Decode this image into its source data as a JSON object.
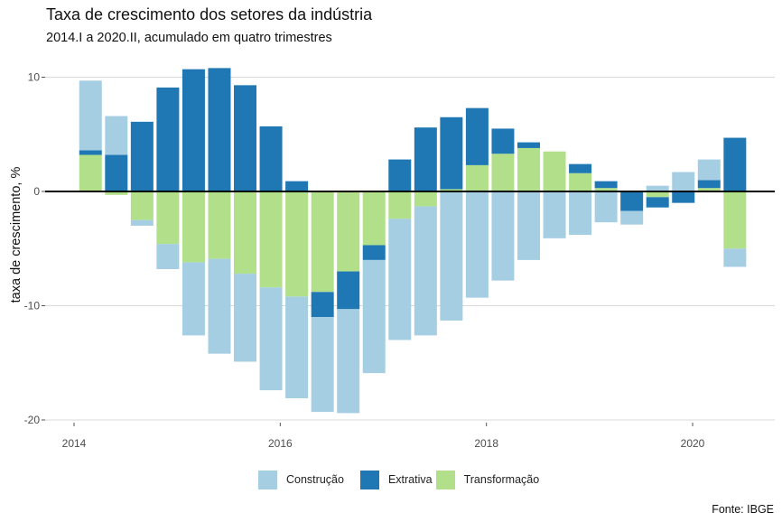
{
  "chart_data": {
    "type": "bar",
    "stacked": true,
    "title": "Taxa de crescimento dos setores da indústria",
    "subtitle": "2014.I a 2020.II, acumulado em quatro trimestres",
    "xlabel": "",
    "ylabel": "taxa de crescimento, %",
    "ylim": [
      -21,
      11
    ],
    "xlim": [
      2013.5,
      2020.87
    ],
    "yticks": [
      10,
      0,
      -10,
      -20
    ],
    "ytick_labels": [
      "10",
      "0",
      "-10",
      "-20"
    ],
    "xticks": [
      2014,
      2016,
      2018,
      2020
    ],
    "xtick_labels": [
      "2014",
      "2016",
      "2018",
      "2020"
    ],
    "grid": "horizontal",
    "legend_position": "bottom",
    "caption": "Fonte: IBGE",
    "categories": [
      "2014.I",
      "2014.II",
      "2014.III",
      "2014.IV",
      "2015.I",
      "2015.II",
      "2015.III",
      "2015.IV",
      "2016.I",
      "2016.II",
      "2016.III",
      "2016.IV",
      "2017.I",
      "2017.II",
      "2017.III",
      "2017.IV",
      "2018.I",
      "2018.II",
      "2018.III",
      "2018.IV",
      "2019.I",
      "2019.II",
      "2019.III",
      "2019.IV",
      "2020.I",
      "2020.II"
    ],
    "x": [
      2014.16,
      2014.41,
      2014.66,
      2014.91,
      2015.16,
      2015.41,
      2015.66,
      2015.91,
      2016.16,
      2016.41,
      2016.66,
      2016.91,
      2017.16,
      2017.41,
      2017.66,
      2017.91,
      2018.16,
      2018.41,
      2018.66,
      2018.91,
      2019.16,
      2019.41,
      2019.66,
      2019.91,
      2020.16,
      2020.41
    ],
    "series": [
      {
        "name": "Transformação",
        "color": "#b2df8a",
        "values": [
          3.2,
          -0.3,
          -2.5,
          -4.6,
          -6.2,
          -5.9,
          -7.2,
          -8.4,
          -9.2,
          -8.8,
          -7.0,
          -4.7,
          -2.4,
          -1.3,
          0.2,
          2.3,
          3.3,
          3.8,
          3.5,
          1.6,
          0.3,
          0.0,
          -0.5,
          0.0,
          0.3,
          -5.0
        ]
      },
      {
        "name": "Extrativa",
        "color": "#1f78b4",
        "values": [
          0.4,
          3.2,
          6.1,
          9.1,
          10.7,
          10.8,
          9.3,
          5.7,
          0.9,
          -2.2,
          -3.3,
          -1.3,
          2.8,
          5.6,
          6.3,
          5.0,
          2.2,
          0.5,
          0.0,
          0.8,
          0.6,
          -1.7,
          -0.9,
          -1.0,
          0.7,
          4.7
        ]
      },
      {
        "name": "Construção",
        "color": "#a6cee3",
        "values": [
          6.1,
          3.4,
          -0.5,
          -2.2,
          -6.4,
          -8.3,
          -7.7,
          -9.0,
          -8.9,
          -8.3,
          -9.1,
          -9.9,
          -10.6,
          -11.3,
          -11.3,
          -9.3,
          -7.8,
          -6.0,
          -4.1,
          -3.8,
          -2.7,
          -1.2,
          0.5,
          1.7,
          1.8,
          -1.6
        ]
      }
    ]
  },
  "legend": {
    "items": [
      {
        "label": "Construção",
        "color": "#a6cee3"
      },
      {
        "label": "Extrativa",
        "color": "#1f78b4"
      },
      {
        "label": "Transformação",
        "color": "#b2df8a"
      }
    ]
  }
}
